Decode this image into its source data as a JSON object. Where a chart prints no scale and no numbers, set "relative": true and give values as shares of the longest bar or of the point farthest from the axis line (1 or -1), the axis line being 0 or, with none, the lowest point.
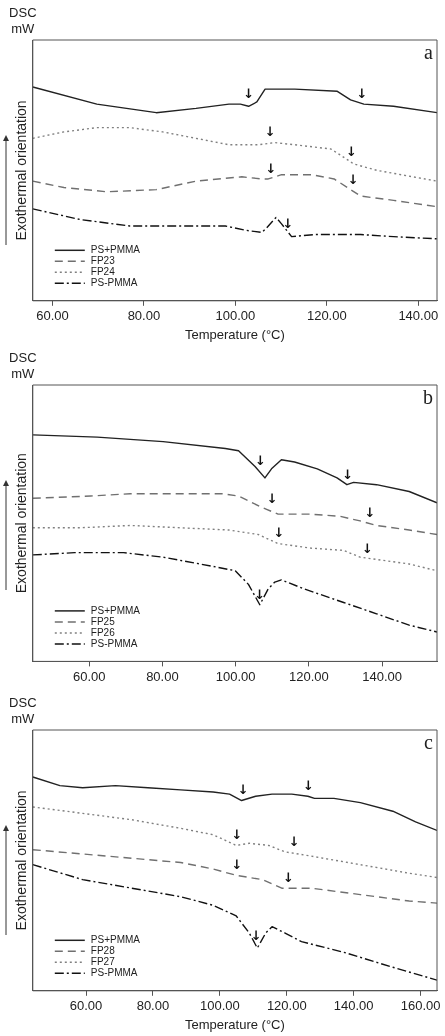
{
  "chart_data": [
    {
      "type": "line",
      "relative": true,
      "xlabel": "Temperature (°C)",
      "ylabel": "Exothermal orientation",
      "legend": "bottom left",
      "xlim": [
        55.7,
        144.1
      ],
      "xticks": [
        {
          "value": 60,
          "label": "60.00"
        },
        {
          "value": 80,
          "label": "80.00"
        },
        {
          "value": 100,
          "label": "100.00"
        },
        {
          "value": 120,
          "label": "120.00"
        },
        {
          "value": 140,
          "label": "140.00"
        }
      ],
      "annotations": [
        "DSC",
        "mW",
        "a",
        {
          "text": "↓",
          "x": 102.9,
          "y": 0.92
        },
        {
          "text": "↓",
          "x": 127.7,
          "y": 0.92
        },
        {
          "text": "↓",
          "x": 107.6,
          "y": 0.74
        },
        {
          "text": "↓",
          "x": 125.4,
          "y": 0.65
        },
        {
          "text": "↓",
          "x": 107.8,
          "y": 0.57
        },
        {
          "text": "↓",
          "x": 125.8,
          "y": 0.52
        },
        {
          "text": "↓",
          "x": 111.5,
          "y": 0.31
        }
      ],
      "series": [
        {
          "name": "PS+PMMA",
          "color": "#222222",
          "line_style": "solid",
          "x": [
            55.7,
            69.7,
            82.7,
            91.4,
            98.6,
            101.1,
            102.9,
            104.7,
            106.5,
            113.0,
            122.3,
            125.2,
            128.1,
            134.6,
            144.1
          ],
          "values": [
            1,
            0.92,
            0.88,
            0.9,
            0.92,
            0.92,
            0.91,
            0.93,
            0.99,
            0.99,
            0.98,
            0.94,
            0.92,
            0.91,
            0.88
          ]
        },
        {
          "name": "FP23",
          "color": "#707070",
          "line_style": "dashed",
          "x": [
            55.7,
            62.5,
            71.9,
            82.7,
            91.4,
            101.4,
            105.8,
            107.2,
            110.1,
            116.6,
            121.6,
            124.5,
            127.4,
            134.6,
            144.1
          ],
          "values": [
            0.56,
            0.53,
            0.51,
            0.52,
            0.56,
            0.58,
            0.57,
            0.57,
            0.59,
            0.59,
            0.57,
            0.53,
            0.49,
            0.47,
            0.44
          ]
        },
        {
          "name": "FP24",
          "color": "#808080",
          "line_style": "dotted",
          "x": [
            55.7,
            62.5,
            69.7,
            76.9,
            84.1,
            91.4,
            98.6,
            102.2,
            105.0,
            108.6,
            113.0,
            120.9,
            123.1,
            125.9,
            131.0,
            144.1
          ],
          "values": [
            0.76,
            0.79,
            0.81,
            0.81,
            0.79,
            0.76,
            0.73,
            0.73,
            0.73,
            0.74,
            0.73,
            0.71,
            0.68,
            0.64,
            0.61,
            0.56
          ]
        },
        {
          "name": "PS-PMMA",
          "color": "#111111",
          "line_style": "dashdot",
          "x": [
            55.7,
            66.1,
            76.9,
            87.7,
            97.8,
            102.2,
            105.8,
            106.8,
            108.9,
            110.1,
            112.3,
            117.3,
            127.4,
            134.6,
            144.1
          ],
          "values": [
            0.43,
            0.38,
            0.35,
            0.35,
            0.35,
            0.33,
            0.32,
            0.34,
            0.39,
            0.36,
            0.3,
            0.31,
            0.31,
            0.3,
            0.29
          ]
        }
      ]
    },
    {
      "type": "line",
      "relative": true,
      "ylabel": "Exothermal orientation",
      "legend": "bottom left",
      "xlim": [
        44.6,
        155.0
      ],
      "xticks": [
        {
          "value": 60,
          "label": "60.00"
        },
        {
          "value": 80,
          "label": "80.00"
        },
        {
          "value": 100,
          "label": "100.00"
        },
        {
          "value": 120,
          "label": "120.00"
        },
        {
          "value": 140,
          "label": "140.00"
        }
      ],
      "annotations": [
        "DSC",
        "mW",
        "b",
        {
          "text": "↓",
          "x": 106.8,
          "y": 0.84
        },
        {
          "text": "↓",
          "x": 130.6,
          "y": 0.78
        },
        {
          "text": "↓",
          "x": 110.0,
          "y": 0.67
        },
        {
          "text": "↓",
          "x": 136.7,
          "y": 0.61
        },
        {
          "text": "↓",
          "x": 111.8,
          "y": 0.52
        },
        {
          "text": "↓",
          "x": 136.0,
          "y": 0.45
        },
        {
          "text": "↓",
          "x": 106.6,
          "y": 0.25
        }
      ],
      "series": [
        {
          "name": "PS+PMMA",
          "color": "#222222",
          "line_style": "solid",
          "x": [
            44.6,
            62.2,
            80.2,
            97.2,
            100.8,
            105.3,
            108.0,
            109.8,
            112.5,
            116.1,
            122.3,
            127.7,
            130.4,
            132.2,
            138.5,
            147.4,
            155.0
          ],
          "values": [
            1,
            0.99,
            0.97,
            0.94,
            0.93,
            0.86,
            0.81,
            0.85,
            0.89,
            0.88,
            0.85,
            0.81,
            0.78,
            0.79,
            0.78,
            0.75,
            0.7
          ]
        },
        {
          "name": "FP25",
          "color": "#707070",
          "line_style": "dashed",
          "x": [
            44.6,
            60.4,
            71.2,
            84.7,
            96.3,
            100.8,
            107.1,
            111.6,
            120.5,
            128.6,
            134.0,
            138.5,
            147.4,
            155.0
          ],
          "values": [
            0.72,
            0.73,
            0.74,
            0.74,
            0.74,
            0.73,
            0.68,
            0.65,
            0.65,
            0.64,
            0.62,
            0.6,
            0.58,
            0.56
          ]
        },
        {
          "name": "FP26",
          "color": "#808080",
          "line_style": "dotted",
          "x": [
            44.6,
            57.8,
            71.2,
            84.7,
            98.1,
            106.2,
            111.6,
            120.5,
            129.5,
            134.0,
            138.5,
            147.4,
            155.0
          ],
          "values": [
            0.59,
            0.59,
            0.6,
            0.59,
            0.58,
            0.56,
            0.52,
            0.5,
            0.49,
            0.46,
            0.45,
            0.43,
            0.4
          ]
        },
        {
          "name": "PS-PMMA",
          "color": "#111111",
          "line_style": "dashdot",
          "x": [
            44.6,
            56.0,
            69.4,
            80.2,
            93.6,
            99.9,
            103.5,
            106.6,
            108.9,
            110.7,
            112.5,
            118.7,
            129.5,
            138.5,
            147.4,
            155.0
          ],
          "values": [
            0.47,
            0.48,
            0.48,
            0.46,
            0.42,
            0.4,
            0.34,
            0.25,
            0.32,
            0.35,
            0.36,
            0.32,
            0.26,
            0.21,
            0.16,
            0.13
          ]
        }
      ]
    },
    {
      "type": "line",
      "relative": true,
      "xlabel": "Temperature (°C)",
      "ylabel": "Exothermal orientation",
      "legend": "bottom left",
      "xlim": [
        44.1,
        164.9
      ],
      "xticks": [
        {
          "value": 60,
          "label": "60.00"
        },
        {
          "value": 80,
          "label": "80.00"
        },
        {
          "value": 100,
          "label": "100.00"
        },
        {
          "value": 120,
          "label": "120.00"
        },
        {
          "value": 140,
          "label": "140.00"
        },
        {
          "value": 160,
          "label": "160.00"
        }
      ],
      "annotations": [
        "DSC",
        "mW",
        "c",
        {
          "text": "↓",
          "x": 107.0,
          "y": 0.89
        },
        {
          "text": "↓",
          "x": 126.5,
          "y": 0.91
        },
        {
          "text": "↓",
          "x": 105.1,
          "y": 0.68
        },
        {
          "text": "↓",
          "x": 122.2,
          "y": 0.65
        },
        {
          "text": "↓",
          "x": 105.1,
          "y": 0.54
        },
        {
          "text": "↓",
          "x": 120.5,
          "y": 0.48
        },
        {
          "text": "↓",
          "x": 110.9,
          "y": 0.21
        }
      ],
      "series": [
        {
          "name": "PS+PMMA",
          "color": "#222222",
          "line_style": "solid",
          "x": [
            44.1,
            52.2,
            59.0,
            68.8,
            78.5,
            88.3,
            98.0,
            102.9,
            106.5,
            110.7,
            115.6,
            121.5,
            126.3,
            128.3,
            134.1,
            142.0,
            151.7,
            158.5,
            164.9
          ],
          "values": [
            1,
            0.96,
            0.95,
            0.96,
            0.95,
            0.94,
            0.93,
            0.92,
            0.89,
            0.91,
            0.92,
            0.92,
            0.91,
            0.9,
            0.9,
            0.88,
            0.84,
            0.79,
            0.75
          ]
        },
        {
          "name": "FP28",
          "color": "#707070",
          "line_style": "dashed",
          "x": [
            44.1,
            59.0,
            73.7,
            88.3,
            98.0,
            104.9,
            112.7,
            118.5,
            127.3,
            142.0,
            156.6,
            164.9
          ],
          "values": [
            0.66,
            0.64,
            0.62,
            0.6,
            0.57,
            0.54,
            0.52,
            0.48,
            0.48,
            0.45,
            0.42,
            0.41
          ]
        },
        {
          "name": "FP27",
          "color": "#808080",
          "line_style": "dotted",
          "x": [
            44.1,
            59.0,
            73.7,
            88.3,
            98.0,
            104.9,
            108.8,
            114.6,
            119.5,
            127.3,
            142.0,
            156.6,
            164.9
          ],
          "values": [
            0.86,
            0.83,
            0.8,
            0.76,
            0.73,
            0.68,
            0.69,
            0.68,
            0.65,
            0.63,
            0.59,
            0.55,
            0.53
          ]
        },
        {
          "name": "PS-PMMA",
          "color": "#111111",
          "line_style": "dashdot",
          "x": [
            44.1,
            59.0,
            73.7,
            88.3,
            98.0,
            104.9,
            108.8,
            111.2,
            113.7,
            115.6,
            119.5,
            124.4,
            137.1,
            151.7,
            164.9
          ],
          "values": [
            0.59,
            0.52,
            0.48,
            0.44,
            0.4,
            0.35,
            0.27,
            0.2,
            0.27,
            0.3,
            0.27,
            0.23,
            0.18,
            0.11,
            0.05
          ]
        }
      ]
    }
  ]
}
